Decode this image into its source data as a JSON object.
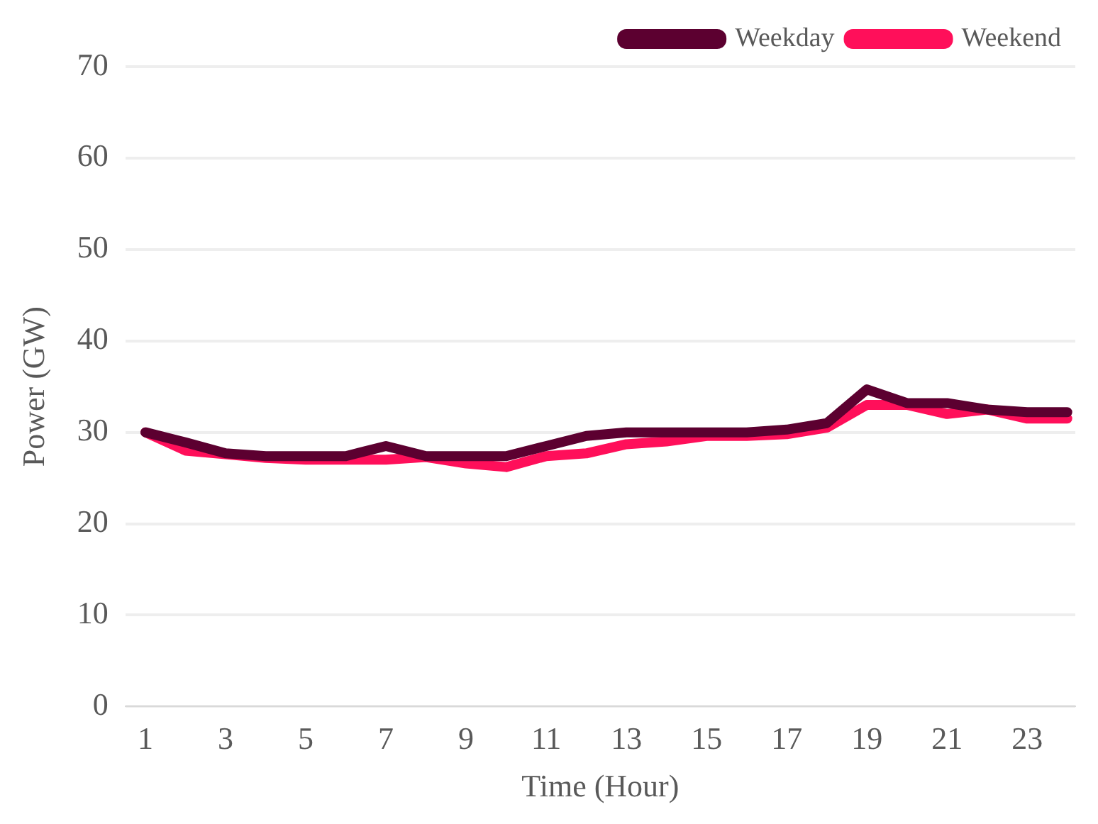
{
  "chart_data": {
    "type": "line",
    "xlabel": "Time (Hour)",
    "ylabel": "Power (GW)",
    "x": [
      1,
      2,
      3,
      4,
      5,
      6,
      7,
      8,
      9,
      10,
      11,
      12,
      13,
      14,
      15,
      16,
      17,
      18,
      19,
      20,
      21,
      22,
      23,
      24
    ],
    "xlim": [
      0.5,
      24.2
    ],
    "xticks": [
      1,
      3,
      5,
      7,
      9,
      11,
      13,
      15,
      17,
      19,
      21,
      23
    ],
    "series": [
      {
        "name": "Weekday",
        "color": "#5c0030",
        "values": [
          30,
          28.9,
          27.7,
          27.4,
          27.4,
          27.4,
          28.5,
          27.4,
          27.4,
          27.4,
          28.5,
          29.6,
          30,
          30,
          30,
          30,
          30.3,
          31,
          34.7,
          33.2,
          33.2,
          32.5,
          32.2,
          32.2
        ]
      },
      {
        "name": "Weekend",
        "color": "#ff0f5a",
        "values": [
          30,
          28,
          27.6,
          27.2,
          27,
          27,
          27,
          27.3,
          26.6,
          26.2,
          27.4,
          27.7,
          28.7,
          29,
          29.6,
          29.6,
          29.8,
          30.5,
          33,
          33,
          32,
          32.5,
          31.5,
          31.5
        ]
      }
    ],
    "ylim": [
      0,
      70
    ],
    "yticks": [
      0,
      10,
      20,
      30,
      40,
      50,
      60,
      70
    ],
    "grid": "y",
    "legend": "top right",
    "marker": "none",
    "line_style": "solid"
  }
}
